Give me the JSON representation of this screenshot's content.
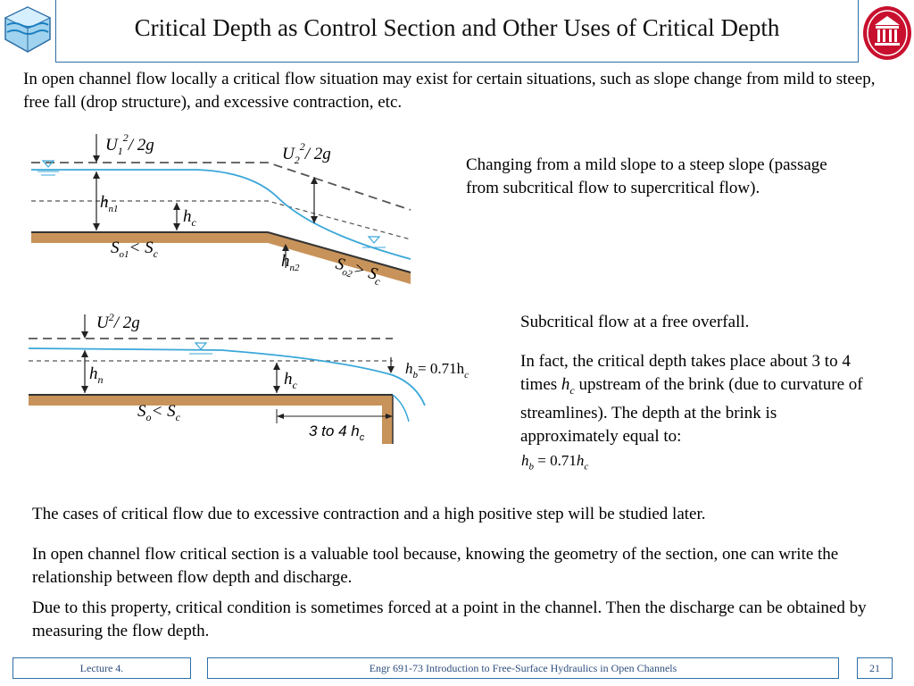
{
  "header": {
    "title": "Critical Depth as Control Section and Other Uses of Critical Depth"
  },
  "intro": "In open channel flow locally a critical flow situation may exist for certain situations, such as slope change from mild to steep, free fall (drop structure), and excessive contraction, etc.",
  "figure1": {
    "caption": "Changing from a mild slope to a steep slope (passage from subcritical flow to supercritical flow).",
    "labels": {
      "u1": "U",
      "u1_sub": "1",
      "u1_rest": "/ 2g",
      "u1_sup": "2",
      "u2": "U",
      "u2_sub": "2",
      "u2_rest": "/ 2g",
      "u2_sup": "2",
      "hn1": "h",
      "hn1_sub": "n1",
      "hc": "h",
      "hc_sub": "c",
      "hn2": "h",
      "hn2_sub": "n2",
      "slope1": "S",
      "slope1_sub": "o1",
      "slope1_rest": "< S",
      "slope1_rest_sub": "c",
      "slope2": "S",
      "slope2_sub": "o2",
      "slope2_rest": "> S",
      "slope2_rest_sub": "c"
    }
  },
  "figure2": {
    "caption1": "Subcritical flow at a free overfall.",
    "caption2_part1": "In fact, the critical depth takes place about 3 to 4 times ",
    "caption2_hc": "h",
    "caption2_hc_sub": "c",
    "caption2_part2": " upstream of the brink (due to curvature of streamlines). The depth at the brink is approximately equal to:",
    "equation": {
      "lhs": "h",
      "lhs_sub": "b",
      "mid": "= 0.71",
      "rhs": "h",
      "rhs_sub": "c"
    },
    "labels": {
      "u": "U",
      "u_sup": "2",
      "u_rest": "/ 2g",
      "hn": "h",
      "hn_sub": "n",
      "hc": "h",
      "hc_sub": "c",
      "hb": "h",
      "hb_sub": "b",
      "hb_rest": "= 0.71h",
      "hb_rest_sub": "c",
      "slope": "S",
      "slope_sub": "o",
      "slope_rest": "< S",
      "slope_rest_sub": "c",
      "dist": "3 to 4 h",
      "dist_sub": "c"
    }
  },
  "body": {
    "p1": "The cases of critical flow due to excessive contraction and a high positive step will be studied later.",
    "p2": "In open channel flow critical section is a valuable tool because, knowing the geometry of the section, one can write the relationship between flow depth and discharge.",
    "p3": "Due to this property, critical condition is sometimes forced at a point in the channel. Then the discharge can be obtained by measuring the flow depth."
  },
  "footer": {
    "lecture": "Lecture 4.",
    "course": "Engr 691-73 Introduction to Free-Surface Hydraulics in Open Channels",
    "page": "21"
  },
  "colors": {
    "accent": "#2e6ea6",
    "water": "#3aa7d8",
    "bed": "#c8935a",
    "logo_red": "#c8102e"
  }
}
